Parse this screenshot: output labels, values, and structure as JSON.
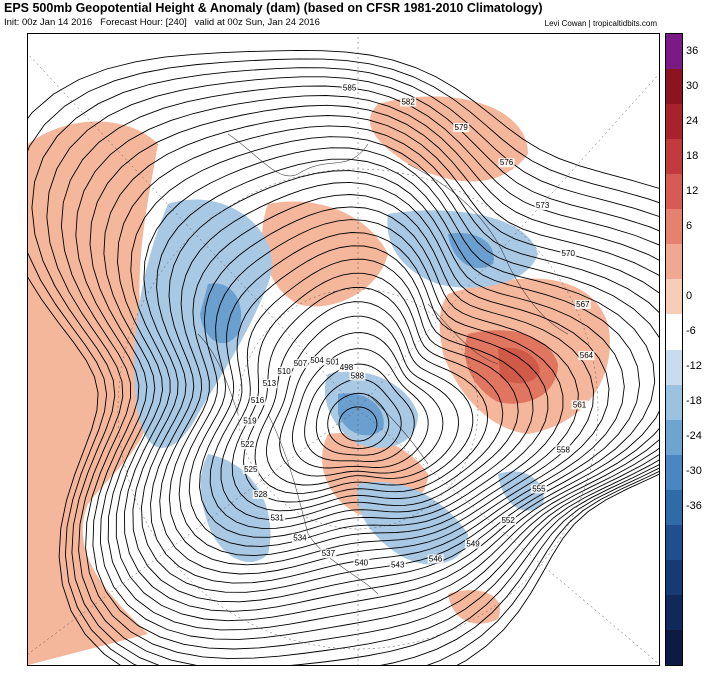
{
  "header": {
    "title": "EPS 500mb Geopotential Height & Anomaly (dam) (based on CFSR 1981-2010 Climatology)",
    "init": "Init: 00z Jan 14 2016",
    "forecast_hour": "Forecast Hour: [240]",
    "valid": "valid at 00z Sun, Jan 24 2016",
    "credit": "Levi Cowan | tropicaltidbits.com"
  },
  "colorbar": {
    "labels": [
      "36",
      "30",
      "24",
      "18",
      "12",
      "6",
      "0",
      "-6",
      "-12",
      "-18",
      "-24",
      "-30",
      "-36"
    ],
    "colors": [
      "#7a1a86",
      "#8c1420",
      "#a9212b",
      "#c23a3e",
      "#d65b55",
      "#e6806f",
      "#f0a890",
      "#f7cdb8",
      "#ffffff",
      "#c8dcee",
      "#9cc2e1",
      "#6ea4d0",
      "#4a86bf",
      "#2f6aa9",
      "#1f4f8f",
      "#163b74",
      "#10285a",
      "#0c1a44"
    ]
  },
  "contour_labels": [
    "585",
    "582",
    "579",
    "576",
    "573",
    "570",
    "567",
    "564",
    "561",
    "558",
    "555",
    "552",
    "549",
    "546",
    "543",
    "540",
    "537",
    "534",
    "531",
    "528",
    "525",
    "522",
    "519",
    "516",
    "513",
    "510",
    "507",
    "504",
    "501",
    "498",
    "588"
  ],
  "anomaly_colors": {
    "positive": "#f5b79c",
    "strong_positive": "#e07560",
    "negative": "#a9c8e4",
    "strong_negative": "#6b9fcf"
  }
}
